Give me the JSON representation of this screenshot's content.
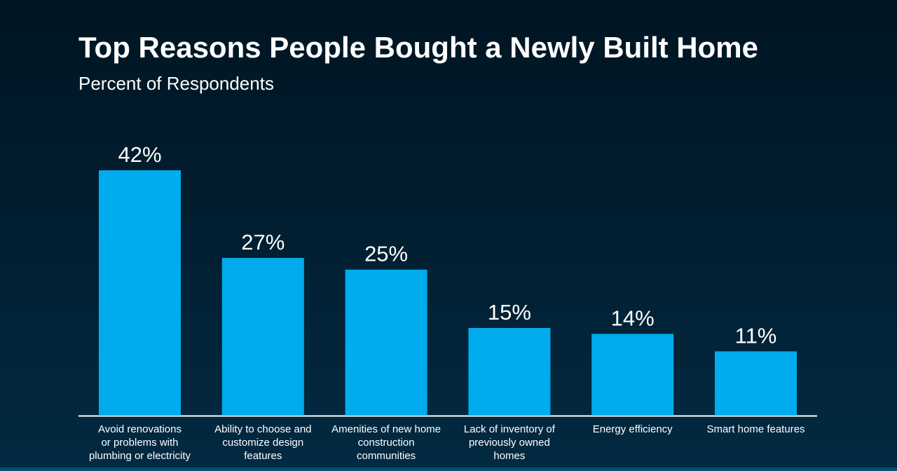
{
  "header": {
    "title": "Top Reasons People Bought a Newly Built Home",
    "subtitle": "Percent of Respondents"
  },
  "colors": {
    "bar": "#00aced",
    "axis": "#ffffff",
    "text": "#ffffff"
  },
  "chart_data": {
    "type": "bar",
    "title": "Top Reasons People Bought a Newly Built Home",
    "subtitle": "Percent of Respondents",
    "categories": [
      [
        "Avoid renovations",
        "or problems with",
        "plumbing or electricity"
      ],
      [
        "Ability to choose and",
        "customize design",
        "features"
      ],
      [
        "Amenities of new home",
        "construction",
        "communities"
      ],
      [
        "Lack of inventory of",
        "previously owned",
        "homes"
      ],
      [
        "Energy efficiency"
      ],
      [
        "Smart home features"
      ]
    ],
    "values": [
      42,
      27,
      25,
      15,
      14,
      11
    ],
    "value_labels": [
      "42%",
      "27%",
      "25%",
      "15%",
      "14%",
      "11%"
    ],
    "unit": "%",
    "ylim": [
      0,
      42
    ],
    "grid": false,
    "legend": "none"
  }
}
